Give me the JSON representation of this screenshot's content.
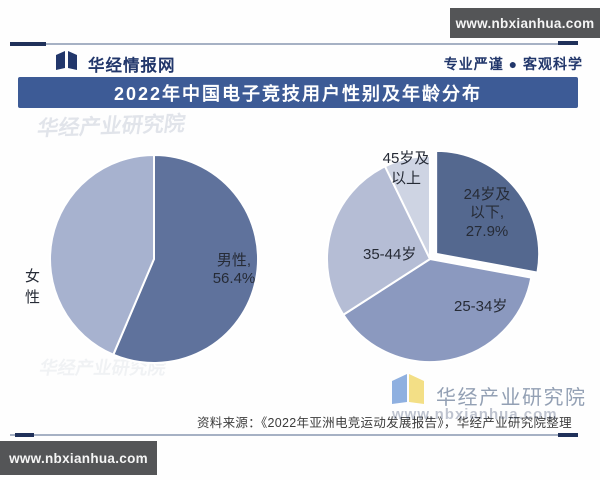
{
  "badges": {
    "top_right": "www.nbxianhua.com",
    "bottom_left": "www.nbxianhua.com",
    "footer_overlay": "www.nbxianhua.com"
  },
  "header": {
    "brand": "华经情报网",
    "slogan": "专业严谨 ● 客观科学"
  },
  "title": "2022年中国电子竞技用户性别及年龄分布",
  "watermarks": {
    "agency": "华经产业研究院"
  },
  "brandmark": {
    "label": "华经产业研究院"
  },
  "footer": {
    "source": "资料来源：《2022年亚洲电竞运动发展报告》，华经产业研究院整理"
  },
  "colors": {
    "banner_bg": "#3d5b96",
    "badge_bg": "#545557",
    "navy_text": "#22376b",
    "slice_gap": "#ffffff"
  },
  "chart_data": [
    {
      "type": "pie",
      "name": "gender-distribution",
      "start_angle_deg": 0,
      "direction": "clockwise",
      "legend_position": "none",
      "slices": [
        {
          "label": "男性",
          "value": 56.4,
          "value_shown": true,
          "color": "#5f729c",
          "display": "男性,\n56.4%"
        },
        {
          "label": "女性",
          "value": 43.6,
          "value_shown": false,
          "color": "#a7b2cf",
          "display": "女\n性"
        }
      ]
    },
    {
      "type": "pie",
      "name": "age-distribution",
      "start_angle_deg": 0,
      "direction": "clockwise",
      "legend_position": "none",
      "slices": [
        {
          "label": "24岁及以下",
          "value": 27.9,
          "value_shown": true,
          "exploded": true,
          "color": "#54688f",
          "display": "24岁及\n以下,\n27.9%"
        },
        {
          "label": "25-34岁",
          "value": 38.0,
          "value_shown": false,
          "color": "#8b99bf",
          "display": "25-34岁"
        },
        {
          "label": "35-44岁",
          "value": 26.9,
          "value_shown": false,
          "color": "#b5bdd5",
          "display": "35-44岁"
        },
        {
          "label": "45岁及以上",
          "value": 7.2,
          "value_shown": false,
          "color": "#ced4e3",
          "display": "45岁及\n以上"
        }
      ]
    }
  ]
}
